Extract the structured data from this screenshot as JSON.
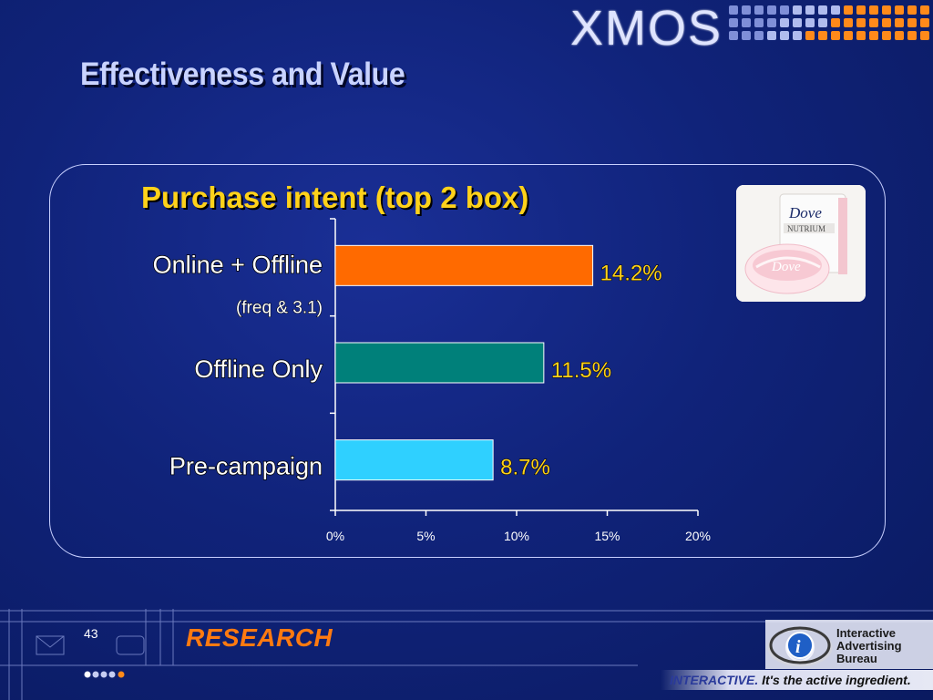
{
  "slide": {
    "title": "Effectiveness and Value",
    "page_number": "43",
    "logo_text": "XMOS",
    "footer_logo": "RESEARCH",
    "iab_name": [
      "Interactive",
      "Advertising",
      "Bureau"
    ],
    "tagline_part1": "INTERACTIVE.",
    "tagline_part2": "It's the active ingredient."
  },
  "product_image": {
    "brand": "Dove",
    "product": "NUTRIUM"
  },
  "colors": {
    "background": "#10237a",
    "title_text": "#c9d3ff",
    "chart_title": "#ffd21a",
    "value_label": "#ffd21a",
    "research_orange": "#ff7a10"
  },
  "chart_data": {
    "type": "bar",
    "orientation": "horizontal",
    "title": "Purchase intent (top 2 box)",
    "categories": [
      "Online + Offline",
      "Offline Only",
      "Pre-campaign"
    ],
    "category_sublabels": [
      "(freq & 3.1)",
      "",
      ""
    ],
    "values": [
      14.2,
      11.5,
      8.7
    ],
    "value_labels": [
      "14.2%",
      "11.5%",
      "8.7%"
    ],
    "bar_colors": [
      "#ff6a00",
      "#00807a",
      "#2fd0ff"
    ],
    "xlim": [
      0,
      20
    ],
    "xticks": [
      0,
      5,
      10,
      15,
      20
    ],
    "xtick_labels": [
      "0%",
      "5%",
      "10%",
      "15%",
      "20%"
    ],
    "grid": false,
    "legend": "none"
  }
}
